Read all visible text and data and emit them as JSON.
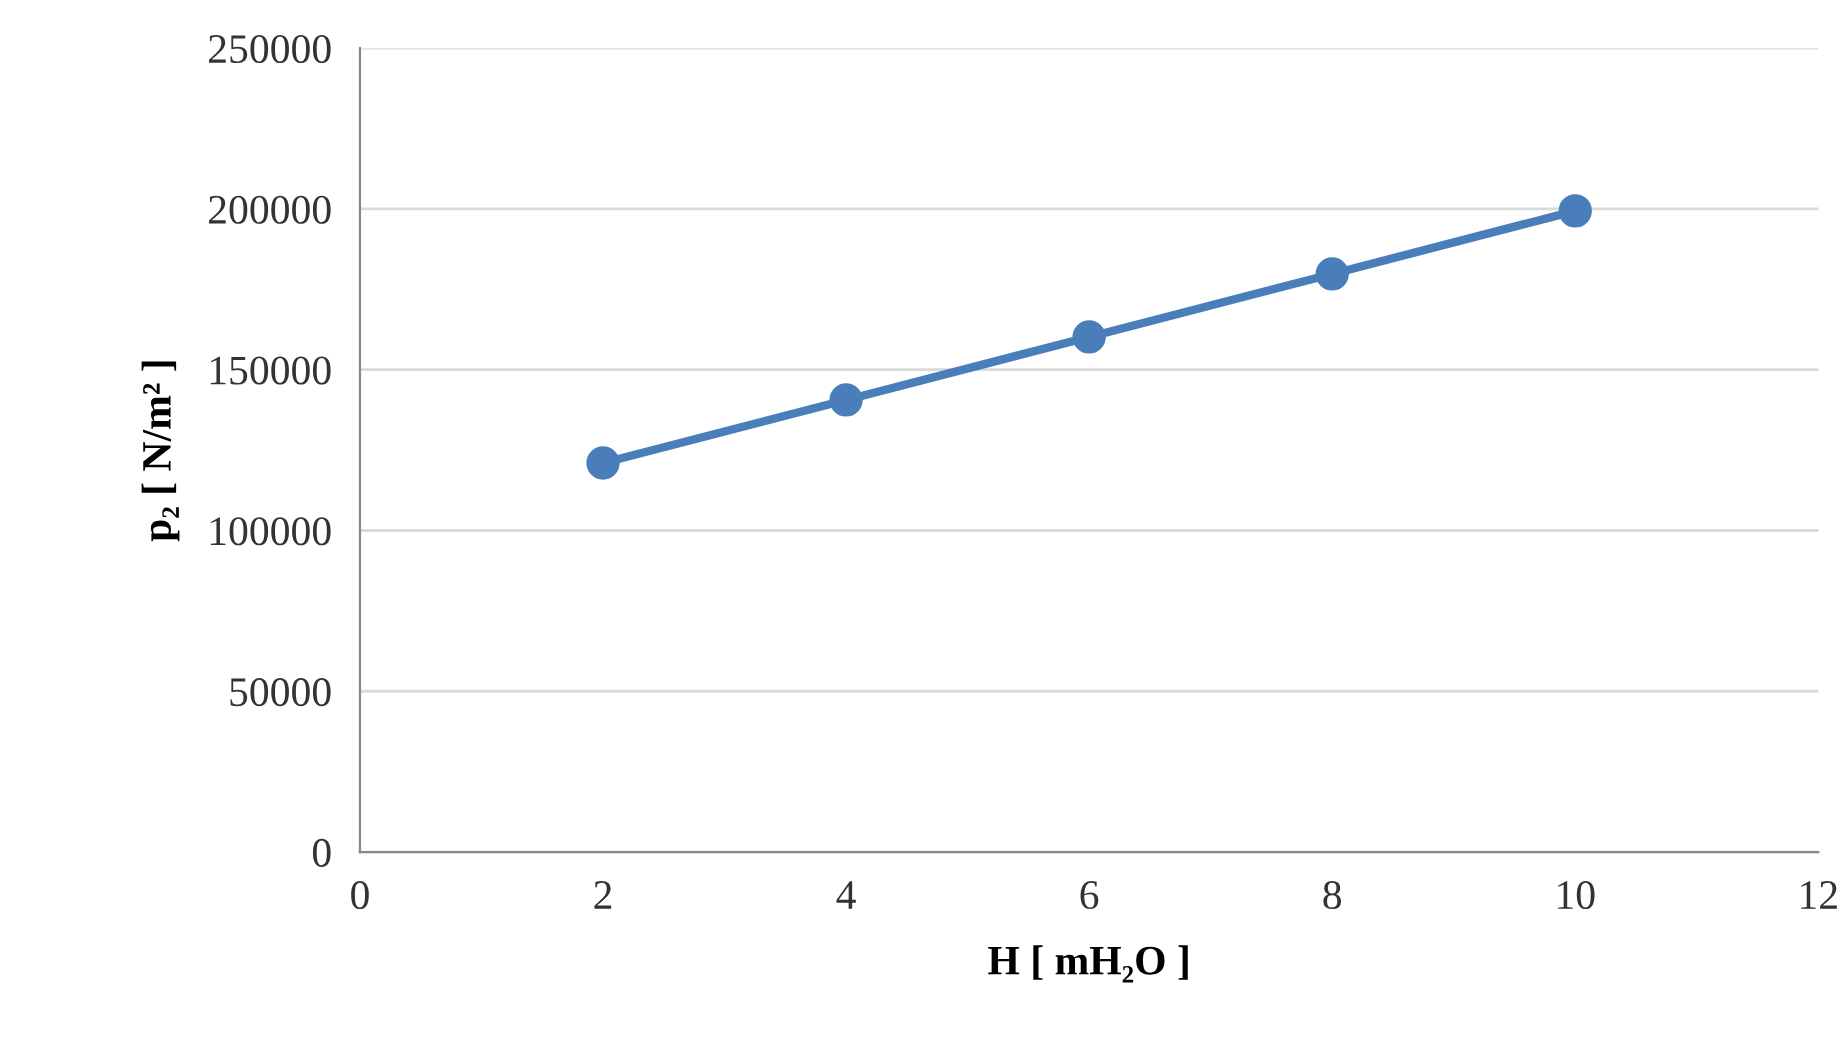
{
  "chart_data": {
    "type": "line",
    "xlabel": "H [ mH₂O ]",
    "ylabel": "p₂ [ N/m² ]",
    "x": [
      2,
      4,
      6,
      8,
      10
    ],
    "series": [
      {
        "color": "#4a7ebb",
        "values": [
          121000,
          140600,
          160200,
          179800,
          199400
        ]
      }
    ],
    "xlim": [
      0,
      12
    ],
    "xticks": [
      0,
      2,
      4,
      6,
      8,
      10,
      12
    ],
    "ylim": [
      0,
      250000
    ],
    "yticks": [
      0,
      50000,
      100000,
      150000,
      200000,
      250000
    ],
    "grid": "y",
    "marker": "circle",
    "line_style": "solid",
    "legend": false
  }
}
